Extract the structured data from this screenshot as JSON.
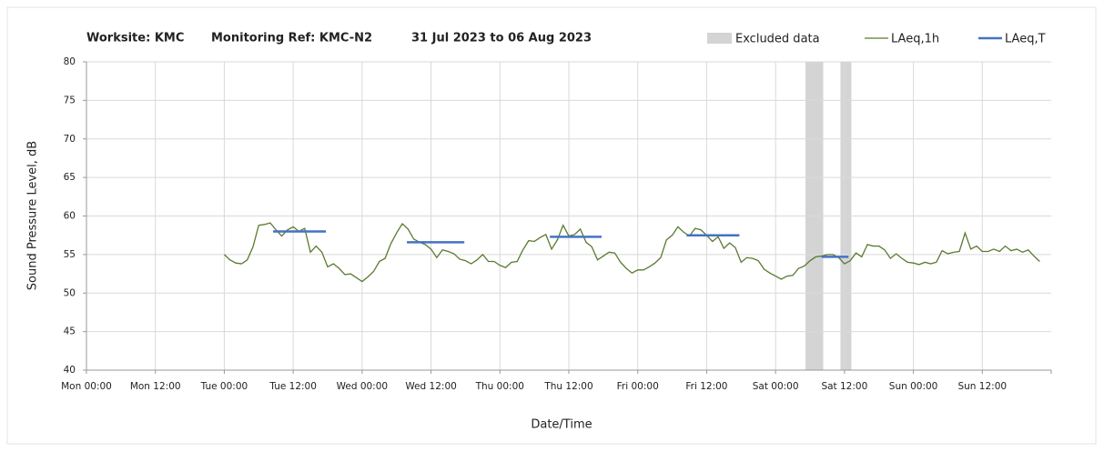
{
  "chart_data": {
    "type": "line",
    "title": [
      "Worksite: KMC",
      "Monitoring Ref: KMC-N2",
      "31 Jul 2023 to 06 Aug 2023"
    ],
    "x_label": "Date/Time",
    "y_label": "Sound Pressure Level, dB",
    "xlim": [
      0,
      168
    ],
    "ylim": [
      40,
      80
    ],
    "xticks": [
      {
        "value": 0,
        "label": "Mon 00:00"
      },
      {
        "value": 12,
        "label": "Mon 12:00"
      },
      {
        "value": 24,
        "label": "Tue 00:00"
      },
      {
        "value": 36,
        "label": "Tue 12:00"
      },
      {
        "value": 48,
        "label": "Wed 00:00"
      },
      {
        "value": 60,
        "label": "Wed 12:00"
      },
      {
        "value": 72,
        "label": "Thu 00:00"
      },
      {
        "value": 84,
        "label": "Thu 12:00"
      },
      {
        "value": 96,
        "label": "Fri 00:00"
      },
      {
        "value": 108,
        "label": "Fri 12:00"
      },
      {
        "value": 120,
        "label": "Sat 00:00"
      },
      {
        "value": 132,
        "label": "Sat 12:00"
      },
      {
        "value": 144,
        "label": "Sun 00:00"
      },
      {
        "value": 156,
        "label": "Sun 12:00"
      }
    ],
    "yticks": [
      40,
      45,
      50,
      55,
      60,
      65,
      70,
      75,
      80
    ],
    "grid": true,
    "excluded": {
      "name": "Excluded data",
      "color": "#d4d4d4",
      "spans": [
        [
          125.2,
          128.3
        ],
        [
          131.3,
          133.2
        ]
      ]
    },
    "x": [
      24,
      25,
      26,
      27,
      28,
      29,
      30,
      31,
      32,
      33,
      34,
      35,
      36,
      37,
      38,
      39,
      40,
      41,
      42,
      43,
      44,
      45,
      46,
      47,
      48,
      49,
      50,
      51,
      52,
      53,
      54,
      55,
      56,
      57,
      58,
      59,
      60,
      61,
      62,
      63,
      64,
      65,
      66,
      67,
      68,
      69,
      70,
      71,
      72,
      73,
      74,
      75,
      76,
      77,
      78,
      79,
      80,
      81,
      82,
      83,
      84,
      85,
      86,
      87,
      88,
      89,
      90,
      91,
      92,
      93,
      94,
      95,
      96,
      97,
      98,
      99,
      100,
      101,
      102,
      103,
      104,
      105,
      106,
      107,
      108,
      109,
      110,
      111,
      112,
      113,
      114,
      115,
      116,
      117,
      118,
      119,
      120,
      121,
      122,
      123,
      124,
      125,
      126,
      127,
      128,
      129,
      130,
      131,
      132,
      133,
      134,
      135,
      136,
      137,
      138,
      139,
      140,
      141,
      142,
      143,
      144,
      145,
      146,
      147,
      148,
      149,
      150,
      151,
      152,
      153,
      154,
      155,
      156,
      157,
      158,
      159,
      160,
      161,
      162,
      163,
      164,
      165,
      166
    ],
    "series": [
      {
        "name": "LAeq,1h",
        "color": "#5a7a2f",
        "values": [
          55,
          54.3,
          53.9,
          53.8,
          54.3,
          56,
          58.8,
          58.9,
          59.1,
          58.2,
          57.4,
          58.2,
          58.6,
          58,
          58.4,
          55.3,
          56.1,
          55.3,
          53.4,
          53.8,
          53.2,
          52.4,
          52.5,
          52,
          51.5,
          52.1,
          52.8,
          54.1,
          54.5,
          56.4,
          57.8,
          59,
          58.3,
          57,
          56.6,
          56.3,
          55.7,
          54.6,
          55.6,
          55.4,
          55.1,
          54.4,
          54.2,
          53.8,
          54.3,
          55,
          54.1,
          54.1,
          53.6,
          53.3,
          54,
          54.1,
          55.6,
          56.8,
          56.7,
          57.2,
          57.6,
          55.7,
          56.9,
          58.8,
          57.4,
          57.6,
          58.3,
          56.6,
          56,
          54.3,
          54.8,
          55.3,
          55.2,
          54,
          53.2,
          52.6,
          53,
          53,
          53.4,
          53.9,
          54.6,
          56.9,
          57.5,
          58.6,
          57.9,
          57.4,
          58.4,
          58.2,
          57.5,
          56.7,
          57.3,
          55.8,
          56.5,
          55.9,
          54,
          54.6,
          54.5,
          54.2,
          53.1,
          52.6,
          52.2,
          51.8,
          52.2,
          52.3,
          53.2,
          53.5,
          54.2,
          54.7,
          54.8,
          55,
          55,
          54.6,
          53.8,
          54.2,
          55.2,
          54.7,
          56.3,
          56.1,
          56.1,
          55.6,
          54.5,
          55.1,
          54.5,
          54,
          53.9,
          53.7,
          54,
          53.8,
          54,
          55.5,
          55.1,
          55.3,
          55.4,
          57.8,
          55.7,
          56.1,
          55.4,
          55.4,
          55.7,
          55.4,
          56.1,
          55.5,
          55.7,
          55.3,
          55.6,
          54.8,
          54.1
        ]
      },
      {
        "name": "LAeq,T",
        "color": "#4472c4",
        "segments": [
          {
            "x": [
              32.5,
              41.7
            ],
            "value": 58
          },
          {
            "x": [
              55.8,
              65.8
            ],
            "value": 56.6
          },
          {
            "x": [
              80.7,
              89.7
            ],
            "value": 57.3
          },
          {
            "x": [
              104.5,
              113.7
            ],
            "value": 57.5
          },
          {
            "x": [
              128,
              132.7
            ],
            "value": 54.7
          }
        ]
      }
    ]
  }
}
